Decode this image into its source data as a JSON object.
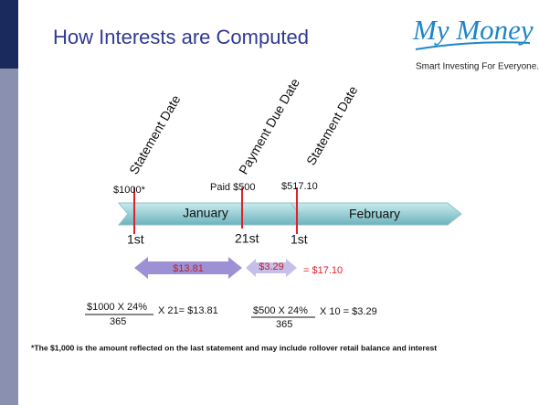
{
  "header": {
    "title": "How Interests are Computed",
    "logo": {
      "brand": "My Money",
      "tagline": "Smart Investing For Everyone."
    }
  },
  "timeline": {
    "months": [
      "January",
      "February"
    ],
    "events": [
      {
        "label": "Statement Date",
        "amount": "$1000*",
        "day": "1st"
      },
      {
        "label": "Payment Due Date",
        "amount": "Paid $500",
        "day": "21st"
      },
      {
        "label": "Statement Date",
        "amount": "$517.10",
        "day": "1st"
      }
    ]
  },
  "periods": [
    {
      "interest": "$13.81"
    },
    {
      "interest": "$3.29"
    }
  ],
  "total": "= $17.10",
  "formulas": [
    {
      "numerator": "$1000 X 24%",
      "denominator": "365",
      "result": "X 21= $13.81"
    },
    {
      "numerator": "$500 X 24%",
      "denominator": "365",
      "result": "X 10 = $3.29"
    }
  ],
  "footnote": "*The $1,000 is the amount reflected on the last statement and may include rollover retail balance and interest"
}
